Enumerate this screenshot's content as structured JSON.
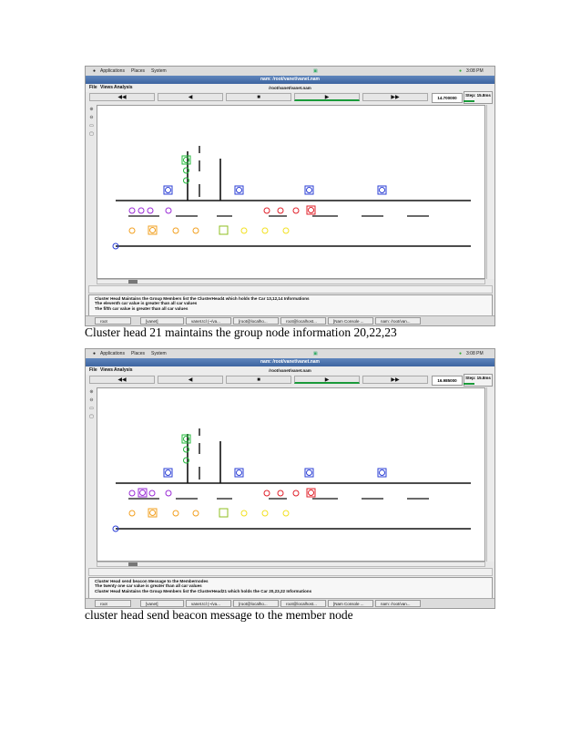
{
  "panels": [
    {
      "gnome_bar": {
        "applications": "Applications",
        "places": "Places",
        "system": "System",
        "clock": "3:08 PM"
      },
      "window_title": "nam: /root/vanet/vanet.nam",
      "menu": {
        "file": "File",
        "views": "Views",
        "analysis": "Analysis",
        "file_path": "/root/vanet/vanet.nam"
      },
      "controls": {
        "rewind": "◀◀",
        "back": "◀",
        "stop": "■",
        "play": "▶",
        "forward": "▶▶"
      },
      "time": "14.700000",
      "step": "Step: 15.8ms",
      "console_lines": [
        "Cluster Head Maintains the Group Members list the ClusterHead4 which holds the Car 13,12,14 Informations",
        "The eleventh car value is greater than all car values",
        "The fifth car value is greater than all car values"
      ],
      "taskbar": [
        "root",
        "[vanet]",
        "vanet.tcl (~/va...",
        "[root@localho...",
        "root@localhost...",
        "[Nam Console ...",
        "nam: /root/van..."
      ]
    },
    {
      "gnome_bar": {
        "applications": "Applications",
        "places": "Places",
        "system": "System",
        "clock": "3:08 PM"
      },
      "window_title": "nam: /root/vanet/vanet.nam",
      "menu": {
        "file": "File",
        "views": "Views",
        "analysis": "Analysis",
        "file_path": "/root/vanet/vanet.nam"
      },
      "controls": {
        "rewind": "◀◀",
        "back": "◀",
        "stop": "■",
        "play": "▶",
        "forward": "▶▶"
      },
      "time": "16.985000",
      "step": "Step: 15.8ms",
      "console_lines": [
        "Cluster Head send beacon Message to the Membernodes",
        "The twenty one car value is greater than all car values",
        "Cluster Head Maintains the Group Members list the ClusterHead21 which holds the Car 20,23,22 Informations"
      ],
      "taskbar": [
        "root",
        "[vanet]",
        "vanet.tcl (~/va...",
        "[root@localho...",
        "root@localhost...",
        "[Nam Console ...",
        "nam: /root/van..."
      ]
    }
  ],
  "captions": [
    "Cluster head 21 maintains the group node information 20,22,23",
    "cluster head send beacon message to the member node"
  ],
  "colors": {
    "rsu_blue": "#2b3fd6",
    "purple": "#9a2bd6",
    "red": "#e0202a",
    "orange": "#f2a020",
    "yellow": "#f2e020",
    "green": "#22b83a"
  }
}
